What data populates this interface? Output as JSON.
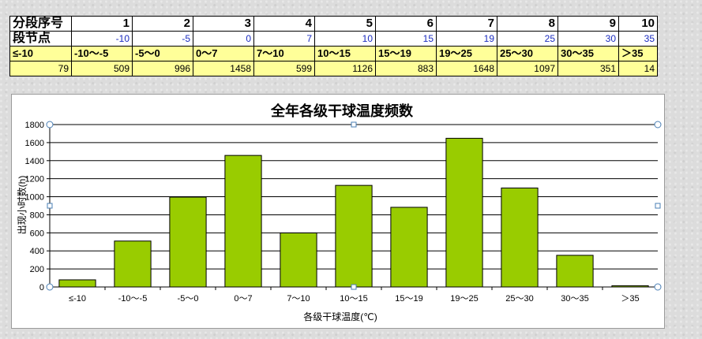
{
  "table": {
    "row1_label": "分段序号",
    "row2_label": "段节点",
    "indices": [
      "1",
      "2",
      "3",
      "4",
      "5",
      "6",
      "7",
      "8",
      "9",
      "10"
    ],
    "nodes": [
      "-10",
      "-5",
      "0",
      "7",
      "10",
      "15",
      "19",
      "25",
      "30",
      "35"
    ],
    "ranges": [
      "≤-10",
      "-10～-5",
      "-5～0",
      "0～7",
      "7～10",
      "10～15",
      "15～19",
      "19～25",
      "25～30",
      "30～35",
      "＞35"
    ],
    "counts": [
      "79",
      "509",
      "996",
      "1458",
      "599",
      "1126",
      "883",
      "1648",
      "1097",
      "351",
      "14"
    ]
  },
  "chart_data": {
    "type": "bar",
    "title": "全年各级干球温度频数",
    "xlabel": "各级干球温度(℃)",
    "ylabel": "出现小时数(h)",
    "categories": [
      "≤-10",
      "-10～-5",
      "-5～0",
      "0～7",
      "7～10",
      "10～15",
      "15～19",
      "19～25",
      "25～30",
      "30～35",
      "＞35"
    ],
    "values": [
      79,
      509,
      996,
      1458,
      599,
      1126,
      883,
      1648,
      1097,
      351,
      14
    ],
    "ylim": [
      0,
      1800
    ],
    "yticks": [
      0,
      200,
      400,
      600,
      800,
      1000,
      1200,
      1400,
      1600,
      1800
    ],
    "grid": true,
    "bar_color": "#99cc00"
  }
}
